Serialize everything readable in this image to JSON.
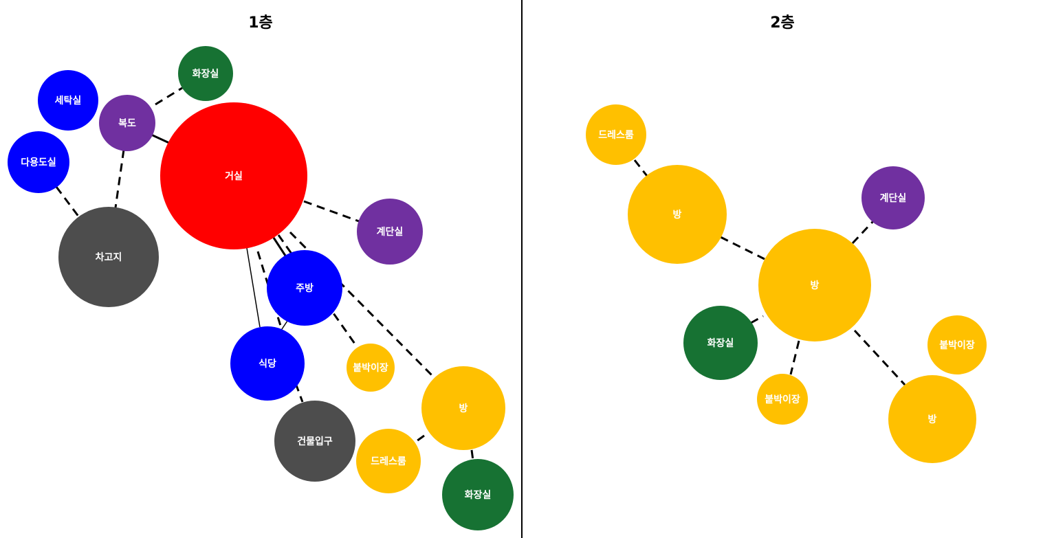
{
  "colors": {
    "red": "#ff0000",
    "blue": "#0000ff",
    "green": "#177233",
    "purple": "#7030a0",
    "gray": "#4d4d4d",
    "yellow": "#ffc000",
    "divider": "#000000"
  },
  "panels": [
    {
      "title": "1층",
      "nodes": [
        {
          "id": "f1-living",
          "label": "거실",
          "color": "red"
        },
        {
          "id": "f1-bathroom-top",
          "label": "화장실",
          "color": "green"
        },
        {
          "id": "f1-laundry",
          "label": "세탁실",
          "color": "blue"
        },
        {
          "id": "f1-hallway",
          "label": "복도",
          "color": "purple"
        },
        {
          "id": "f1-utility",
          "label": "다용도실",
          "color": "blue"
        },
        {
          "id": "f1-garage",
          "label": "차고지",
          "color": "gray"
        },
        {
          "id": "f1-stairs",
          "label": "계단실",
          "color": "purple"
        },
        {
          "id": "f1-kitchen",
          "label": "주방",
          "color": "blue"
        },
        {
          "id": "f1-dining",
          "label": "식당",
          "color": "blue"
        },
        {
          "id": "f1-built-in",
          "label": "붙박이장",
          "color": "yellow"
        },
        {
          "id": "f1-room",
          "label": "방",
          "color": "yellow"
        },
        {
          "id": "f1-entrance",
          "label": "건물입구",
          "color": "gray"
        },
        {
          "id": "f1-dressroom",
          "label": "드레스룸",
          "color": "yellow"
        },
        {
          "id": "f1-bathroom-bot",
          "label": "화장실",
          "color": "green"
        }
      ]
    },
    {
      "title": "2층",
      "nodes": [
        {
          "id": "f2-dressroom",
          "label": "드레스룸",
          "color": "yellow"
        },
        {
          "id": "f2-room-left",
          "label": "방",
          "color": "yellow"
        },
        {
          "id": "f2-stairs",
          "label": "계단실",
          "color": "purple"
        },
        {
          "id": "f2-room-main",
          "label": "방",
          "color": "yellow"
        },
        {
          "id": "f2-bathroom",
          "label": "화장실",
          "color": "green"
        },
        {
          "id": "f2-built-in-r",
          "label": "붙박이장",
          "color": "yellow"
        },
        {
          "id": "f2-built-in-b",
          "label": "붙박이장",
          "color": "yellow"
        },
        {
          "id": "f2-room-br",
          "label": "방",
          "color": "yellow"
        }
      ]
    }
  ]
}
